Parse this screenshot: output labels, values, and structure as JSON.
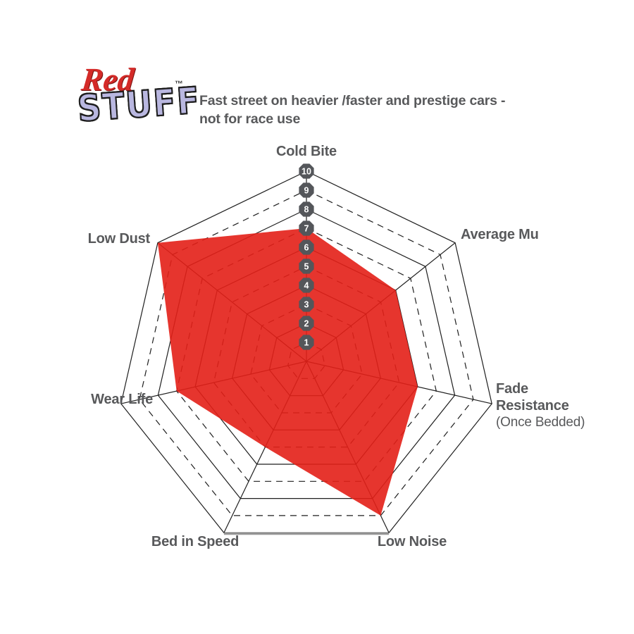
{
  "logo": {
    "red": "Red",
    "stuff": "STUFF",
    "tm": "™"
  },
  "subtitle": {
    "line1": "Fast street on heavier /faster and prestige cars -",
    "line2": "not for race use"
  },
  "chart_data": {
    "type": "radar",
    "title": "RedStuff brake pad performance radar",
    "categories": [
      "Cold Bite",
      "Average Mu",
      "Fade Resistance (Once Bedded)",
      "Low Noise",
      "Bed in Speed",
      "Wear Life",
      "Low Dust"
    ],
    "values": [
      7,
      6,
      6,
      9,
      5,
      7,
      10
    ],
    "scale": {
      "min": 1,
      "max": 10,
      "rings": 10,
      "tick_labels": [
        "1",
        "2",
        "3",
        "4",
        "5",
        "6",
        "7",
        "8",
        "9",
        "10"
      ],
      "tick_axis": "Cold Bite (top axis)",
      "grid_style": "even rings solid, odd rings dashed, straight spokes"
    },
    "legend": "none",
    "colors": {
      "series_fill": "#e31f17",
      "grid": "#1f1f1f",
      "badge": "#54565a",
      "badge_text": "#ffffff",
      "label": "#58595b",
      "bottom_edge": "#9b9b9b",
      "logo_red": "#d42a28",
      "logo_lavender": "#b9b7e0"
    }
  },
  "axis_labels": {
    "cold_bite": "Cold Bite",
    "average_mu": "Average Mu",
    "fade_line1": "Fade",
    "fade_line2": "Resistance",
    "fade_line3": "(Once Bedded)",
    "low_noise": "Low Noise",
    "bed_in_speed": "Bed in Speed",
    "wear_life": "Wear Life",
    "low_dust": "Low Dust"
  }
}
